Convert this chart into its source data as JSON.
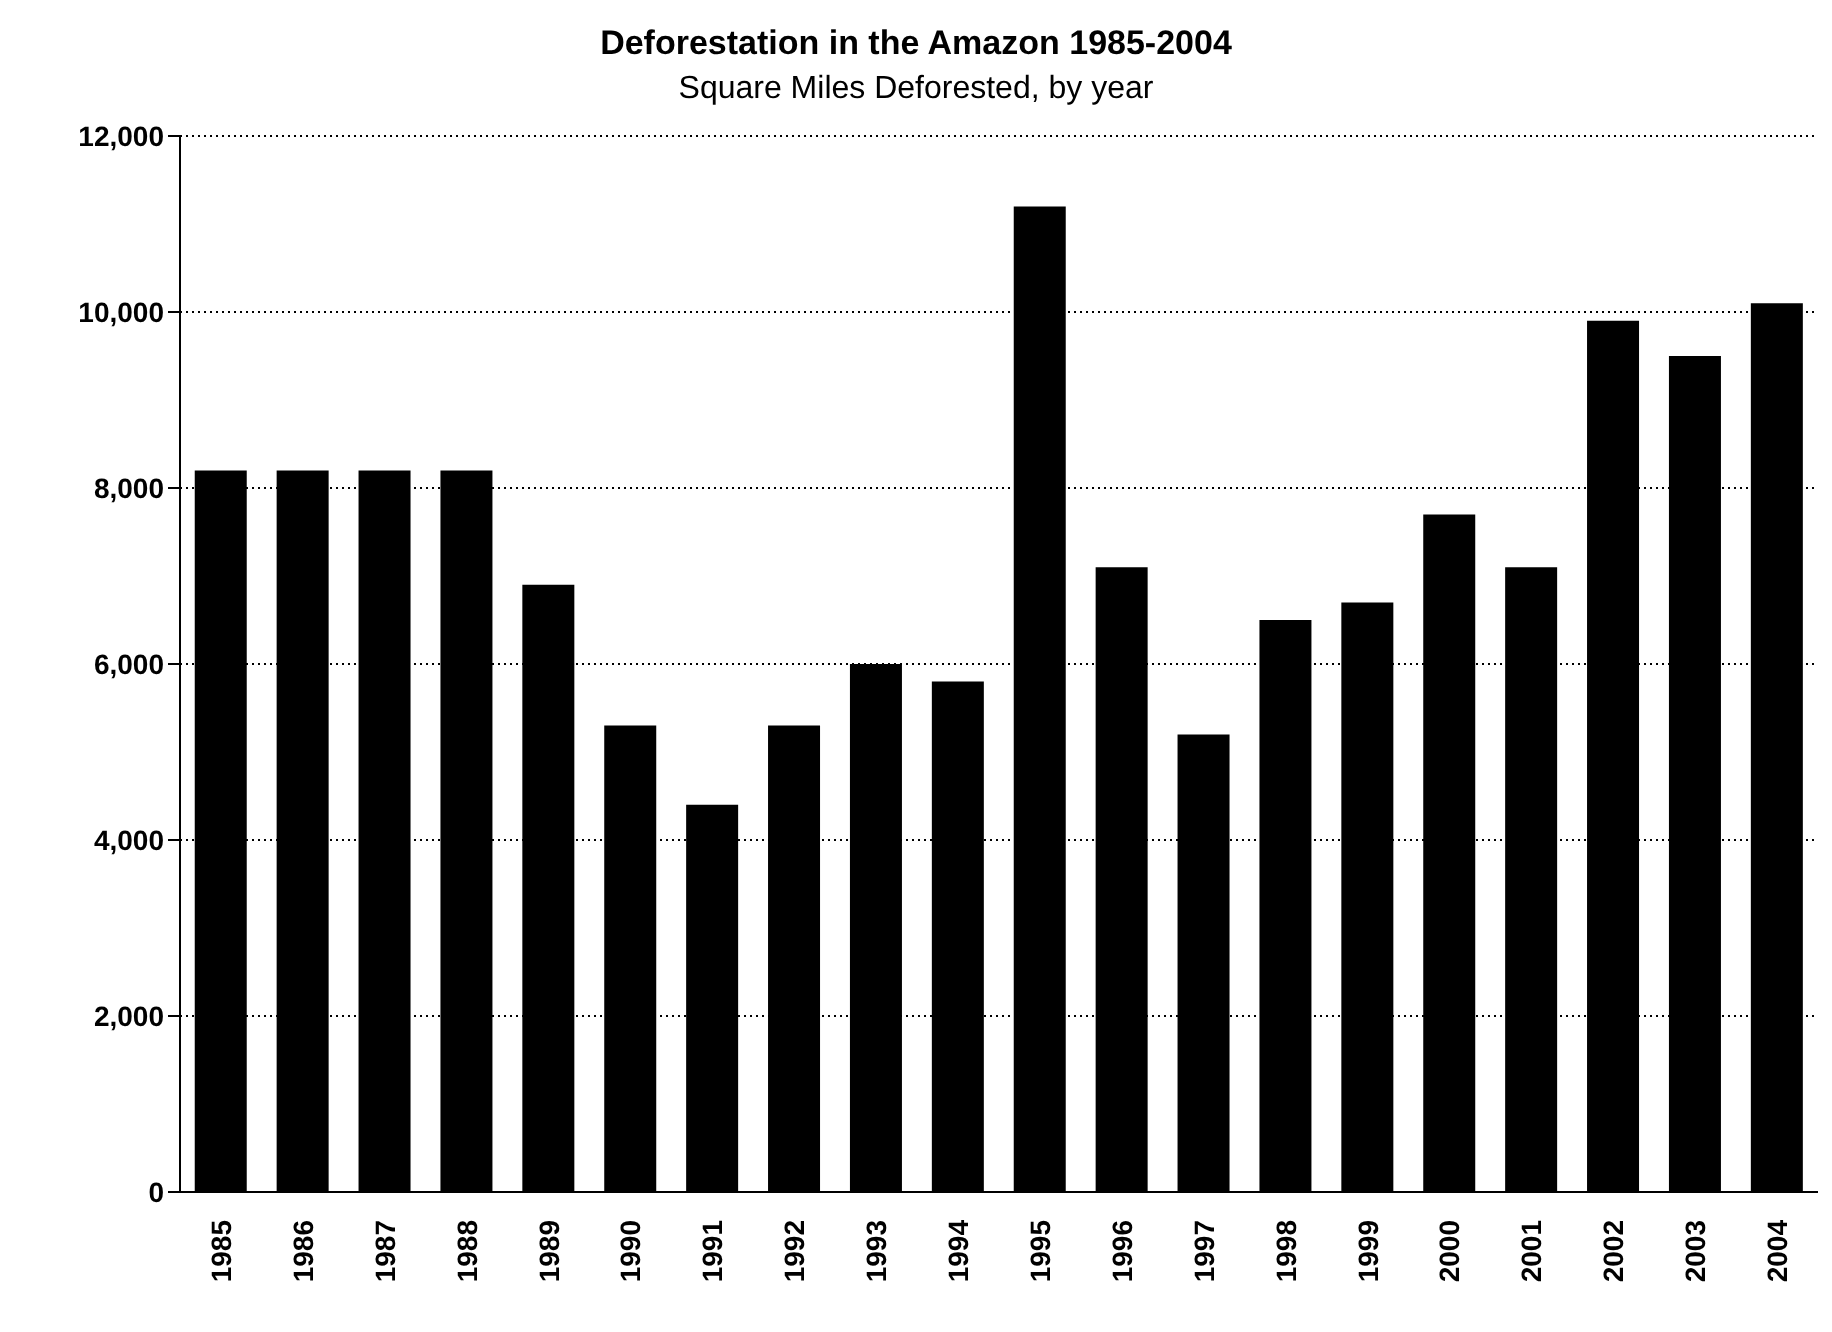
{
  "chart_data": {
    "type": "bar",
    "title": "Deforestation in the Amazon 1985-2004",
    "subtitle": "Square Miles Deforested, by year",
    "categories": [
      "1985",
      "1986",
      "1987",
      "1988",
      "1989",
      "1990",
      "1991",
      "1992",
      "1993",
      "1994",
      "1995",
      "1996",
      "1997",
      "1998",
      "1999",
      "2000",
      "2001",
      "2002",
      "2003",
      "2004"
    ],
    "values": [
      8200,
      8200,
      8200,
      8200,
      6900,
      5300,
      4400,
      5300,
      6000,
      5800,
      11200,
      7100,
      5200,
      6500,
      6700,
      7700,
      7100,
      9900,
      9500,
      10100
    ],
    "color": "#000000",
    "ylim": [
      0,
      12000
    ],
    "yticks": [
      0,
      {
        "value": 2000,
        "label": "2,000"
      },
      {
        "value": 4000,
        "label": "4,000"
      },
      {
        "value": 6000,
        "label": "6,000"
      },
      {
        "value": 8000,
        "label": "8,000"
      },
      {
        "value": 10000,
        "label": "10,000"
      },
      {
        "value": 12000,
        "label": "12,000"
      }
    ],
    "grid": "y"
  }
}
